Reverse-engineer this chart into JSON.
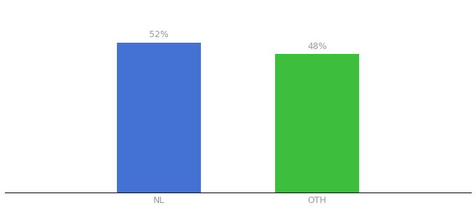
{
  "categories": [
    "NL",
    "OTH"
  ],
  "values": [
    52,
    48
  ],
  "bar_colors": [
    "#4472d4",
    "#3dbe3d"
  ],
  "label_texts": [
    "52%",
    "48%"
  ],
  "background_color": "#ffffff",
  "figsize": [
    6.8,
    3.0
  ],
  "dpi": 100,
  "ylim": [
    0,
    65
  ],
  "bar_width": 0.18,
  "x_positions": [
    0.33,
    0.67
  ],
  "xlim": [
    0.0,
    1.0
  ],
  "label_fontsize": 9,
  "tick_fontsize": 9,
  "label_color": "#999999"
}
